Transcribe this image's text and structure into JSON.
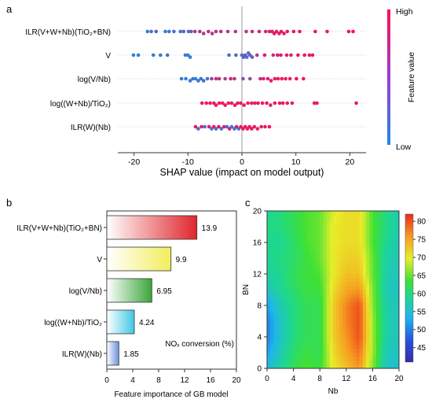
{
  "panels": {
    "a": "a",
    "b": "b",
    "c": "c"
  },
  "colors": {
    "high": "#ff0d57",
    "low": "#1e88e5"
  },
  "chart_data": [
    {
      "type": "scatter",
      "panel": "a",
      "xlabel": "SHAP value (impact on model output)",
      "xlim": [
        -23,
        23
      ],
      "xticks": [
        -20,
        -10,
        0,
        10,
        20
      ],
      "colorbar": {
        "label": "Feature value",
        "high": "High",
        "low": "Low"
      },
      "features": [
        {
          "name": "ILR(V+W+Nb)(TiO₂+BN)",
          "points": [
            [
              -17.5,
              0.1
            ],
            [
              -16.8,
              0.2
            ],
            [
              -15.9,
              0.3
            ],
            [
              -14.2,
              0.1
            ],
            [
              -13.5,
              0.15
            ],
            [
              -12.6,
              0.2
            ],
            [
              -11.4,
              0.1
            ],
            [
              -10.8,
              0.3
            ],
            [
              -9.9,
              0.2
            ],
            [
              -9.4,
              0.4
            ],
            [
              -8.7,
              0.6
            ],
            [
              -7.8,
              0.7
            ],
            [
              -7.1,
              0.6
            ],
            [
              -6.2,
              0.7
            ],
            [
              -5.5,
              0.6
            ],
            [
              -4.8,
              0.65
            ],
            [
              -3.9,
              0.7
            ],
            [
              -2.6,
              0.6
            ],
            [
              -1.2,
              0.65
            ],
            [
              0.8,
              0.7
            ],
            [
              1.9,
              0.75
            ],
            [
              3.2,
              0.8
            ],
            [
              4.4,
              0.8
            ],
            [
              5.1,
              0.85
            ],
            [
              5.6,
              0.9
            ],
            [
              6.0,
              0.9
            ],
            [
              6.4,
              0.85
            ],
            [
              6.9,
              0.9
            ],
            [
              7.3,
              0.9
            ],
            [
              7.8,
              0.85
            ],
            [
              8.4,
              0.9
            ],
            [
              9.6,
              0.95
            ],
            [
              10.7,
              0.9
            ],
            [
              13.6,
              0.95
            ],
            [
              15.8,
              0.9
            ],
            [
              19.8,
              1.0
            ],
            [
              20.6,
              1.0
            ]
          ]
        },
        {
          "name": "V",
          "points": [
            [
              -20.1,
              0.1
            ],
            [
              -19.2,
              0.05
            ],
            [
              -16.4,
              0.1
            ],
            [
              -15.1,
              0.1
            ],
            [
              -13.8,
              0.15
            ],
            [
              -10.5,
              0.1
            ],
            [
              -10.0,
              0.05
            ],
            [
              -9.6,
              0.1
            ],
            [
              -2.4,
              0.15
            ],
            [
              -1.1,
              0.2
            ],
            [
              0.0,
              0.3
            ],
            [
              0.3,
              0.25
            ],
            [
              0.6,
              0.3
            ],
            [
              0.9,
              0.2
            ],
            [
              1.2,
              0.3
            ],
            [
              1.5,
              0.3
            ],
            [
              1.9,
              0.35
            ],
            [
              2.8,
              0.6
            ],
            [
              4.2,
              0.9
            ],
            [
              5.8,
              0.7
            ],
            [
              6.6,
              0.9
            ],
            [
              7.2,
              0.85
            ],
            [
              8.3,
              0.9
            ],
            [
              9.1,
              0.85
            ],
            [
              10.4,
              0.9
            ],
            [
              11.6,
              0.9
            ],
            [
              12.5,
              0.95
            ],
            [
              13.1,
              0.9
            ]
          ]
        },
        {
          "name": "log(V/Nb)",
          "points": [
            [
              -11.2,
              0.1
            ],
            [
              -10.4,
              0.1
            ],
            [
              -9.6,
              0.15
            ],
            [
              -9.1,
              0.1
            ],
            [
              -8.6,
              0.1
            ],
            [
              -8.1,
              0.15
            ],
            [
              -7.6,
              0.1
            ],
            [
              -7.1,
              0.2
            ],
            [
              -6.4,
              0.15
            ],
            [
              -5.6,
              0.6
            ],
            [
              -4.8,
              0.7
            ],
            [
              -4.2,
              0.75
            ],
            [
              -3.1,
              0.6
            ],
            [
              -2.1,
              0.8
            ],
            [
              -1.4,
              0.7
            ],
            [
              0.2,
              0.4
            ],
            [
              1.5,
              0.5
            ],
            [
              3.4,
              0.7
            ],
            [
              4.0,
              0.8
            ],
            [
              4.8,
              0.85
            ],
            [
              5.4,
              0.9
            ],
            [
              6.1,
              0.9
            ],
            [
              6.7,
              0.85
            ],
            [
              7.4,
              0.9
            ],
            [
              8.1,
              0.95
            ],
            [
              8.9,
              0.9
            ],
            [
              10.1,
              0.95
            ],
            [
              11.4,
              0.9
            ]
          ]
        },
        {
          "name": "log((W+Nb)/TiO₂)",
          "points": [
            [
              -7.4,
              0.9
            ],
            [
              -6.6,
              0.95
            ],
            [
              -5.9,
              0.9
            ],
            [
              -5.2,
              0.85
            ],
            [
              -4.8,
              0.95
            ],
            [
              -4.2,
              0.9
            ],
            [
              -3.6,
              0.85
            ],
            [
              -3.1,
              0.95
            ],
            [
              -2.5,
              0.9
            ],
            [
              -1.9,
              0.8
            ],
            [
              -1.3,
              0.9
            ],
            [
              -0.8,
              0.95
            ],
            [
              -0.2,
              0.85
            ],
            [
              0.4,
              0.9
            ],
            [
              1.1,
              0.95
            ],
            [
              1.8,
              0.9
            ],
            [
              2.4,
              0.85
            ],
            [
              3.0,
              0.9
            ],
            [
              3.8,
              0.95
            ],
            [
              4.6,
              0.9
            ],
            [
              5.3,
              0.85
            ],
            [
              6.1,
              0.9
            ],
            [
              7.0,
              0.95
            ],
            [
              7.6,
              0.9
            ],
            [
              8.4,
              0.85
            ],
            [
              9.3,
              0.9
            ],
            [
              13.4,
              0.95
            ],
            [
              13.9,
              0.9
            ],
            [
              21.2,
              0.95
            ]
          ]
        },
        {
          "name": "ILR(W)(Nb)",
          "points": [
            [
              -8.6,
              0.9
            ],
            [
              -8.1,
              0.2
            ],
            [
              -7.5,
              0.85
            ],
            [
              -6.9,
              0.3
            ],
            [
              -6.1,
              0.9
            ],
            [
              -5.6,
              0.1
            ],
            [
              -5.2,
              0.85
            ],
            [
              -4.8,
              0.2
            ],
            [
              -4.3,
              0.9
            ],
            [
              -3.8,
              0.15
            ],
            [
              -3.3,
              0.85
            ],
            [
              -2.8,
              0.2
            ],
            [
              -2.3,
              0.9
            ],
            [
              -1.9,
              0.15
            ],
            [
              -1.4,
              0.2
            ],
            [
              -1.0,
              0.9
            ],
            [
              -0.6,
              0.2
            ],
            [
              -0.2,
              0.85
            ],
            [
              0.2,
              0.9
            ],
            [
              0.6,
              0.95
            ],
            [
              1.0,
              0.9
            ],
            [
              1.4,
              0.85
            ],
            [
              1.8,
              0.9
            ],
            [
              2.3,
              0.95
            ],
            [
              2.9,
              0.9
            ],
            [
              3.6,
              0.85
            ],
            [
              4.3,
              0.9
            ],
            [
              5.1,
              0.95
            ]
          ]
        }
      ]
    },
    {
      "type": "bar",
      "panel": "b",
      "orientation": "horizontal",
      "categories": [
        "ILR(V+W+Nb)(TiO₂+BN)",
        "V",
        "log(V/Nb)",
        "log((W+Nb)/TiO₂",
        "ILR(W)(Nb)"
      ],
      "values": [
        13.9,
        9.9,
        6.95,
        4.24,
        1.85
      ],
      "value_labels": [
        "13.9",
        "9.9",
        "6.95",
        "4.24",
        "1.85"
      ],
      "bar_colors": [
        "#e0262d",
        "#f2ee5c",
        "#3aa53a",
        "#3ec7e6",
        "#6b8fdc"
      ],
      "xlabel": "Feature importance of  GB model",
      "xlim": [
        0,
        20
      ],
      "xticks": [
        0,
        4,
        8,
        12,
        16,
        20
      ],
      "annotation": "NOₓ conversion (%)"
    },
    {
      "type": "heatmap",
      "panel": "c",
      "xlabel": "Nb",
      "ylabel": "BN",
      "xlim": [
        0,
        20
      ],
      "ylim": [
        0,
        20
      ],
      "xticks": [
        0,
        4,
        8,
        12,
        16,
        20
      ],
      "yticks": [
        0,
        4,
        8,
        12,
        16,
        20
      ],
      "colorbar_ticks": [
        45,
        50,
        55,
        60,
        65,
        70,
        75,
        80
      ],
      "colorbar_range": [
        41,
        82
      ],
      "x": [
        0,
        2,
        4,
        6,
        8,
        10,
        12,
        14,
        16,
        18,
        20
      ],
      "y": [
        0,
        2,
        4,
        6,
        8,
        10,
        12,
        14,
        16,
        18,
        20
      ],
      "z": [
        [
          55,
          58,
          62,
          64,
          63,
          70,
          73,
          76,
          66,
          56,
          55
        ],
        [
          52,
          57,
          61,
          63,
          62,
          71,
          75,
          78,
          67,
          57,
          56
        ],
        [
          50,
          56,
          60,
          62,
          62,
          72,
          76,
          80,
          67,
          58,
          56
        ],
        [
          50,
          56,
          60,
          62,
          62,
          72,
          77,
          80,
          67,
          58,
          56
        ],
        [
          52,
          57,
          60,
          62,
          62,
          72,
          77,
          80,
          66,
          58,
          56
        ],
        [
          56,
          59,
          61,
          63,
          63,
          71,
          75,
          76,
          66,
          57,
          56
        ],
        [
          58,
          59,
          62,
          63,
          64,
          70,
          73,
          73,
          65,
          58,
          56
        ],
        [
          59,
          60,
          61,
          63,
          65,
          70,
          72,
          72,
          65,
          58,
          57
        ],
        [
          59,
          59,
          61,
          64,
          65,
          70,
          71,
          71,
          64,
          59,
          57
        ],
        [
          60,
          60,
          62,
          64,
          65,
          70,
          71,
          71,
          64,
          60,
          57
        ],
        [
          59,
          60,
          62,
          64,
          65,
          69,
          71,
          71,
          64,
          60,
          57
        ]
      ]
    }
  ]
}
